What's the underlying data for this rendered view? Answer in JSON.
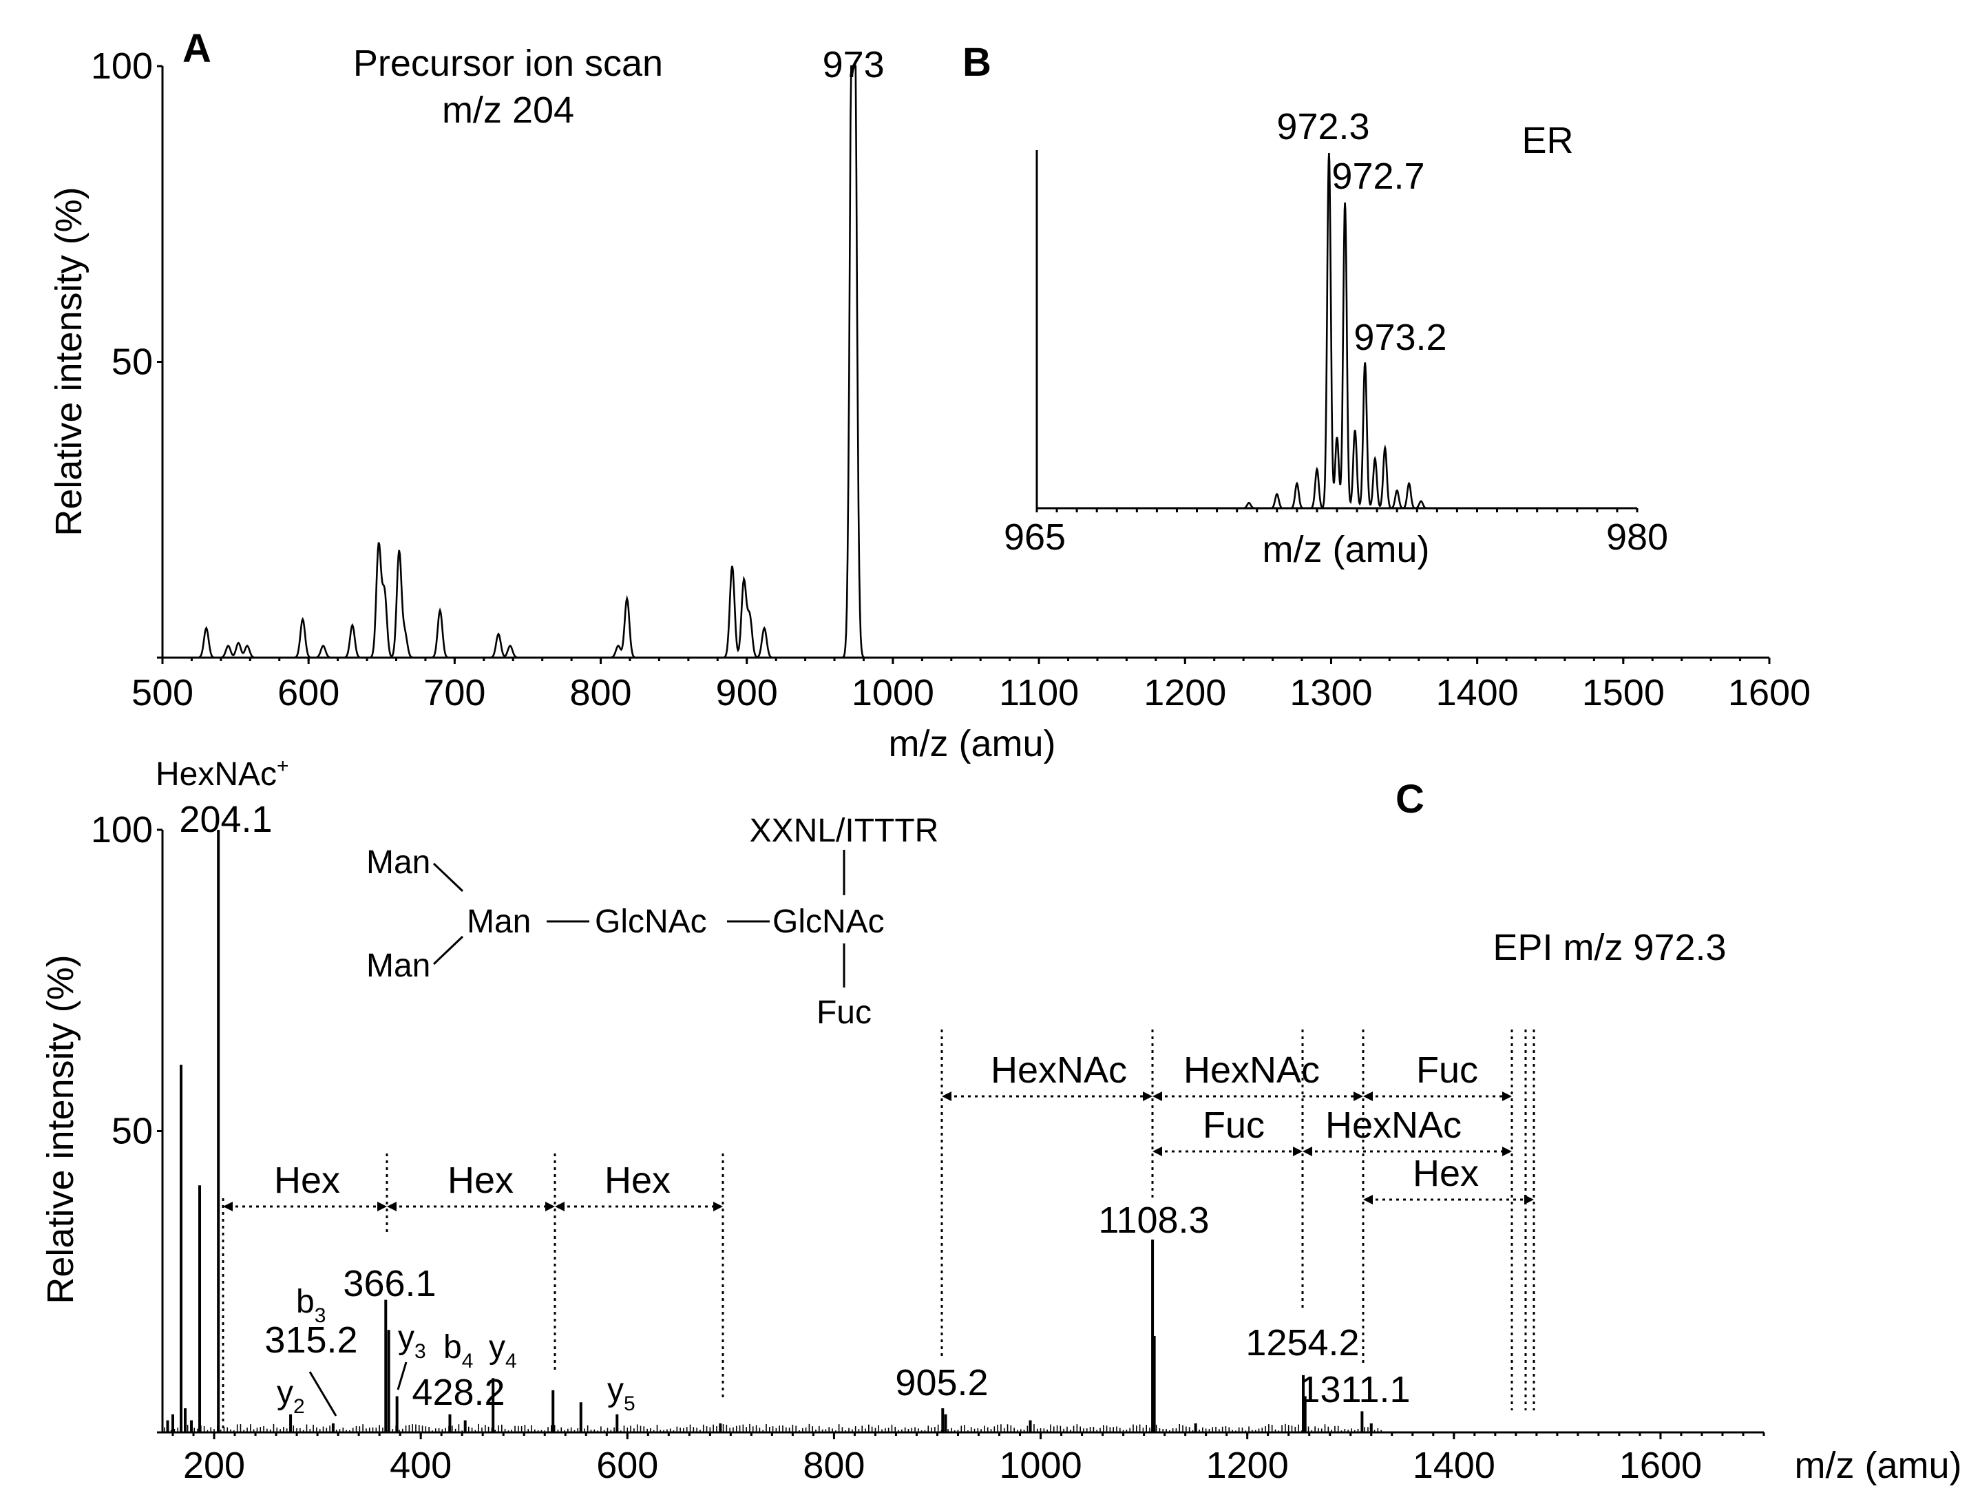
{
  "chart_data": [
    {
      "panel": "A",
      "type": "line",
      "title": "Precursor ion scan",
      "subtitle": "m/z 204",
      "xlabel": "m/z (amu)",
      "ylabel": "Relative intensity (%)",
      "xlim": [
        500,
        1600
      ],
      "ylim": [
        0,
        100
      ],
      "xticks": [
        500,
        600,
        700,
        800,
        900,
        1000,
        1100,
        1200,
        1300,
        1400,
        1500,
        1600
      ],
      "yticks": [
        0,
        50,
        100
      ],
      "ytick_labels": [
        "",
        "50",
        "100"
      ],
      "peaks": [
        {
          "x": 530,
          "y": 5
        },
        {
          "x": 545,
          "y": 2
        },
        {
          "x": 552,
          "y": 2.5
        },
        {
          "x": 558,
          "y": 2
        },
        {
          "x": 596,
          "y": 6.5
        },
        {
          "x": 610,
          "y": 2
        },
        {
          "x": 630,
          "y": 5.5
        },
        {
          "x": 648,
          "y": 19
        },
        {
          "x": 652,
          "y": 11
        },
        {
          "x": 662,
          "y": 18
        },
        {
          "x": 666,
          "y": 4
        },
        {
          "x": 690,
          "y": 8
        },
        {
          "x": 730,
          "y": 4
        },
        {
          "x": 738,
          "y": 2
        },
        {
          "x": 812,
          "y": 2
        },
        {
          "x": 818,
          "y": 10
        },
        {
          "x": 890,
          "y": 15.5
        },
        {
          "x": 898,
          "y": 13
        },
        {
          "x": 902,
          "y": 7
        },
        {
          "x": 912,
          "y": 5
        },
        {
          "x": 972,
          "y": 94
        },
        {
          "x": 974,
          "y": 80
        }
      ],
      "annotations": [
        {
          "x": 973,
          "label": "973"
        }
      ]
    },
    {
      "panel": "B",
      "type": "line",
      "title": "ER",
      "xlabel": "m/z (amu)",
      "xlim": [
        965,
        980
      ],
      "ylim": [
        0,
        100
      ],
      "xtick_labels": [
        "965",
        "980"
      ],
      "peaks": [
        {
          "x": 970.3,
          "y": 1.5
        },
        {
          "x": 971.0,
          "y": 4
        },
        {
          "x": 971.5,
          "y": 7
        },
        {
          "x": 972.0,
          "y": 11
        },
        {
          "x": 972.3,
          "y": 100
        },
        {
          "x": 972.5,
          "y": 20
        },
        {
          "x": 972.7,
          "y": 86
        },
        {
          "x": 972.95,
          "y": 22
        },
        {
          "x": 973.2,
          "y": 41
        },
        {
          "x": 973.45,
          "y": 14
        },
        {
          "x": 973.7,
          "y": 17
        },
        {
          "x": 974.0,
          "y": 5
        },
        {
          "x": 974.3,
          "y": 7
        },
        {
          "x": 974.6,
          "y": 2
        }
      ],
      "annotations": [
        {
          "x": 972.3,
          "label": "972.3"
        },
        {
          "x": 972.7,
          "label": "972.7"
        },
        {
          "x": 973.2,
          "label": "973.2"
        }
      ]
    },
    {
      "panel": "C",
      "type": "bar",
      "title": "EPI m/z 972.3",
      "xlabel": "m/z (amu)",
      "ylabel": "Relative intensity (%)",
      "xlim": [
        150,
        1700
      ],
      "ylim": [
        0,
        100
      ],
      "xticks": [
        200,
        400,
        600,
        800,
        1000,
        1200,
        1400,
        1600
      ],
      "yticks": [
        0,
        50,
        100
      ],
      "ytick_labels": [
        "",
        "50",
        "100"
      ],
      "peaks": [
        {
          "x": 168,
          "y": 61
        },
        {
          "x": 186,
          "y": 41
        },
        {
          "x": 204.1,
          "y": 100
        },
        {
          "x": 155,
          "y": 2
        },
        {
          "x": 160,
          "y": 3
        },
        {
          "x": 172,
          "y": 4
        },
        {
          "x": 178,
          "y": 2
        },
        {
          "x": 274,
          "y": 3
        },
        {
          "x": 315.2,
          "y": 1.5
        },
        {
          "x": 366.1,
          "y": 22
        },
        {
          "x": 369,
          "y": 17
        },
        {
          "x": 377,
          "y": 6
        },
        {
          "x": 428.2,
          "y": 3
        },
        {
          "x": 443,
          "y": 2
        },
        {
          "x": 470,
          "y": 9
        },
        {
          "x": 528,
          "y": 7
        },
        {
          "x": 555,
          "y": 5
        },
        {
          "x": 590,
          "y": 3
        },
        {
          "x": 690,
          "y": 1.5
        },
        {
          "x": 905.2,
          "y": 4
        },
        {
          "x": 908,
          "y": 3
        },
        {
          "x": 990,
          "y": 2
        },
        {
          "x": 1108.3,
          "y": 32
        },
        {
          "x": 1110,
          "y": 16
        },
        {
          "x": 1150,
          "y": 1.5
        },
        {
          "x": 1254.2,
          "y": 9.5
        },
        {
          "x": 1256,
          "y": 6
        },
        {
          "x": 1311.1,
          "y": 3.5
        },
        {
          "x": 1320,
          "y": 1.5
        }
      ],
      "labels": {
        "hexnac_ion": "HexNAc",
        "hexnac_ion_charge": "+",
        "p204": "204.1",
        "p366": "366.1",
        "p315": "315.2",
        "p428": "428.2",
        "p905": "905.2",
        "p1108": "1108.3",
        "p1254": "1254.2",
        "p1311": "1311.1",
        "b": "b",
        "y": "y",
        "sub2": "2",
        "sub3": "3",
        "sub4": "4",
        "sub5": "5"
      },
      "glycan": {
        "man_top": "Man",
        "man_center": "Man",
        "man_bottom": "Man",
        "glcnac_1": "GlcNAc",
        "glcnac_2": "GlcNAc",
        "peptide": "XXNL/ITTTR",
        "fuc": "Fuc"
      },
      "losses": {
        "hex": "Hex",
        "hexnac": "HexNAc",
        "fuc": "Fuc"
      }
    }
  ]
}
